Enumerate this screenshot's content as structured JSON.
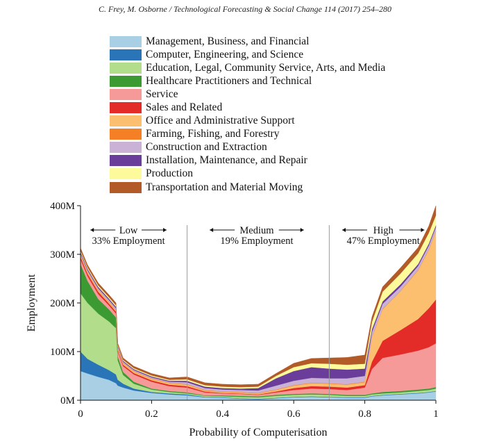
{
  "header": {
    "citation": "C. Frey, M. Osborne / Technological Forecasting & Social Change 114 (2017) 254–280"
  },
  "chart_data": {
    "type": "area",
    "stacked": true,
    "title": "",
    "xlabel": "Probability of Computerisation",
    "ylabel": "Employment",
    "xlim": [
      0,
      1
    ],
    "ylim": [
      0,
      400
    ],
    "y_unit": "M",
    "xticks": [
      "0",
      "0.2",
      "0.4",
      "0.6",
      "0.8",
      "1"
    ],
    "yticks": [
      "0M",
      "100M",
      "200M",
      "300M",
      "400M"
    ],
    "legend_position": "top",
    "x": [
      0,
      0.02,
      0.05,
      0.08,
      0.1,
      0.105,
      0.12,
      0.15,
      0.2,
      0.25,
      0.3,
      0.35,
      0.4,
      0.45,
      0.5,
      0.55,
      0.6,
      0.65,
      0.7,
      0.75,
      0.8,
      0.82,
      0.85,
      0.9,
      0.95,
      0.98,
      1.0
    ],
    "series": [
      {
        "name": "Management, Business, and Financial",
        "color": "#a8cfe3",
        "values": [
          60,
          55,
          48,
          42,
          35,
          30,
          26,
          20,
          15,
          12,
          10,
          6,
          5,
          3,
          2,
          4,
          6,
          7,
          6,
          5,
          5,
          8,
          10,
          12,
          14,
          16,
          18
        ]
      },
      {
        "name": "Computer, Engineering, and Science",
        "color": "#2a75b8",
        "values": [
          40,
          30,
          25,
          20,
          18,
          12,
          8,
          4,
          2,
          2,
          2,
          1,
          1,
          1,
          1,
          1,
          1,
          1,
          1,
          1,
          1,
          1,
          1,
          1,
          1,
          1,
          1
        ]
      },
      {
        "name": "Education, Legal, Community Service, Arts, and Media",
        "color": "#b2de8c",
        "values": [
          120,
          115,
          105,
          100,
          95,
          40,
          18,
          10,
          5,
          3,
          2,
          2,
          2,
          3,
          3,
          4,
          4,
          4,
          4,
          3,
          3,
          3,
          3,
          3,
          4,
          4,
          5
        ]
      },
      {
        "name": "Healthcare Practitioners and Technical",
        "color": "#3c9a33",
        "values": [
          60,
          45,
          30,
          25,
          22,
          8,
          6,
          4,
          2,
          2,
          2,
          1,
          2,
          2,
          2,
          2,
          2,
          2,
          2,
          2,
          2,
          2,
          3,
          3,
          3,
          3,
          3
        ]
      },
      {
        "name": "Service",
        "color": "#f59a98",
        "values": [
          10,
          10,
          10,
          8,
          8,
          10,
          12,
          15,
          14,
          10,
          10,
          6,
          4,
          4,
          3,
          5,
          8,
          10,
          10,
          10,
          15,
          50,
          70,
          75,
          80,
          85,
          90
        ]
      },
      {
        "name": "Sales and Related",
        "color": "#e32c27",
        "values": [
          5,
          5,
          5,
          4,
          4,
          3,
          3,
          3,
          3,
          3,
          3,
          2,
          1,
          1,
          1,
          2,
          4,
          5,
          5,
          5,
          5,
          15,
          35,
          50,
          65,
          80,
          90
        ]
      },
      {
        "name": "Office and Administrative Support",
        "color": "#fbbf6f",
        "values": [
          3,
          3,
          3,
          3,
          3,
          3,
          3,
          3,
          3,
          3,
          3,
          2,
          2,
          2,
          2,
          3,
          5,
          6,
          6,
          6,
          6,
          50,
          65,
          80,
          100,
          120,
          140
        ]
      },
      {
        "name": "Farming, Fishing, and Forestry",
        "color": "#f57f24",
        "values": [
          1,
          1,
          1,
          1,
          1,
          1,
          1,
          1,
          1,
          1,
          1,
          1,
          1,
          1,
          1,
          1,
          1,
          1,
          1,
          1,
          1,
          1,
          1,
          1,
          1,
          1,
          1
        ]
      },
      {
        "name": "Construction and Extraction",
        "color": "#cab2d6",
        "values": [
          3,
          3,
          3,
          3,
          3,
          2,
          2,
          2,
          2,
          2,
          4,
          4,
          4,
          4,
          5,
          8,
          9,
          10,
          10,
          12,
          12,
          10,
          10,
          8,
          8,
          8,
          8
        ]
      },
      {
        "name": "Installation, Maintenance, and Repair",
        "color": "#6a3d9a",
        "values": [
          3,
          3,
          3,
          3,
          3,
          2,
          2,
          2,
          2,
          2,
          3,
          3,
          3,
          3,
          5,
          15,
          20,
          22,
          20,
          18,
          15,
          6,
          5,
          5,
          4,
          4,
          4
        ]
      },
      {
        "name": "Production",
        "color": "#fdfa9b",
        "values": [
          3,
          3,
          3,
          3,
          3,
          2,
          2,
          2,
          2,
          2,
          3,
          3,
          3,
          3,
          3,
          5,
          8,
          8,
          10,
          10,
          10,
          15,
          20,
          22,
          22,
          22,
          20
        ]
      },
      {
        "name": "Transportation and Material Moving",
        "color": "#b25a28",
        "values": [
          5,
          5,
          5,
          5,
          5,
          4,
          4,
          4,
          4,
          4,
          5,
          5,
          5,
          5,
          5,
          5,
          8,
          10,
          12,
          15,
          18,
          10,
          10,
          12,
          12,
          14,
          20
        ]
      }
    ],
    "annotations": [
      {
        "label": "Low",
        "sublabel": "33% Employment"
      },
      {
        "label": "Medium",
        "sublabel": "19% Employment"
      },
      {
        "label": "High",
        "sublabel": "47% Employment"
      }
    ],
    "dividers_x": [
      0.3,
      0.7
    ]
  }
}
